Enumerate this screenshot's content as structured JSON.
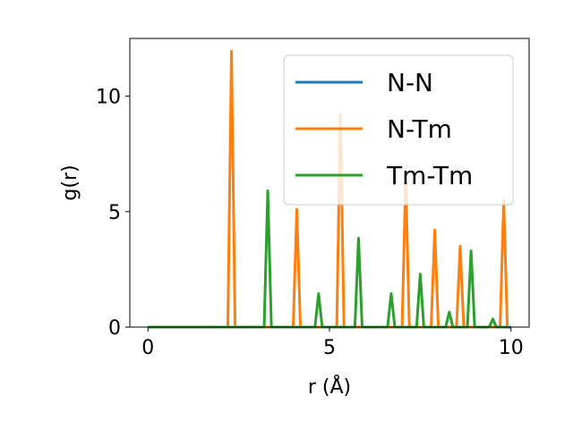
{
  "chart_data": {
    "type": "line",
    "title": "",
    "xlabel": "r (Å)",
    "ylabel": "g(r)",
    "xlim": [
      -0.5,
      10.5
    ],
    "ylim": [
      0,
      12.5
    ],
    "xticks": [
      0,
      5,
      10
    ],
    "yticks": [
      0,
      5,
      10
    ],
    "xtick_labels": [
      "0",
      "5",
      "10"
    ],
    "ytick_labels": [
      "0",
      "5",
      "10"
    ],
    "grid": false,
    "legend_position": "upper-right",
    "series": [
      {
        "name": "N-N",
        "color": "#1f77b4",
        "x": [
          0,
          10
        ],
        "y": [
          0,
          0
        ]
      },
      {
        "name": "N-Tm",
        "color": "#ff7f0e",
        "x": [
          0,
          2.2,
          2.3,
          2.4,
          4.0,
          4.1,
          4.2,
          5.2,
          5.3,
          5.4,
          7.0,
          7.1,
          7.2,
          7.8,
          7.9,
          8.0,
          8.5,
          8.6,
          8.7,
          9.7,
          9.8,
          9.9
        ],
        "y": [
          0,
          0,
          11.95,
          0,
          0,
          5.1,
          0,
          0,
          9.2,
          0,
          0,
          6.5,
          0,
          0,
          4.2,
          0,
          0,
          3.5,
          0,
          0,
          5.5,
          0
        ]
      },
      {
        "name": "Tm-Tm",
        "color": "#2ca02c",
        "x": [
          0,
          3.2,
          3.3,
          3.4,
          4.6,
          4.7,
          4.8,
          5.7,
          5.8,
          5.9,
          6.6,
          6.7,
          6.8,
          7.4,
          7.5,
          7.6,
          8.2,
          8.3,
          8.4,
          8.8,
          8.9,
          9.0,
          9.4,
          9.5,
          9.6,
          9.9
        ],
        "y": [
          0,
          0,
          5.9,
          0,
          0,
          1.45,
          0,
          0,
          3.85,
          0,
          0,
          1.45,
          0,
          0,
          2.3,
          0,
          0,
          0.65,
          0,
          0,
          3.3,
          0,
          0,
          0.35,
          0,
          0
        ]
      }
    ]
  }
}
